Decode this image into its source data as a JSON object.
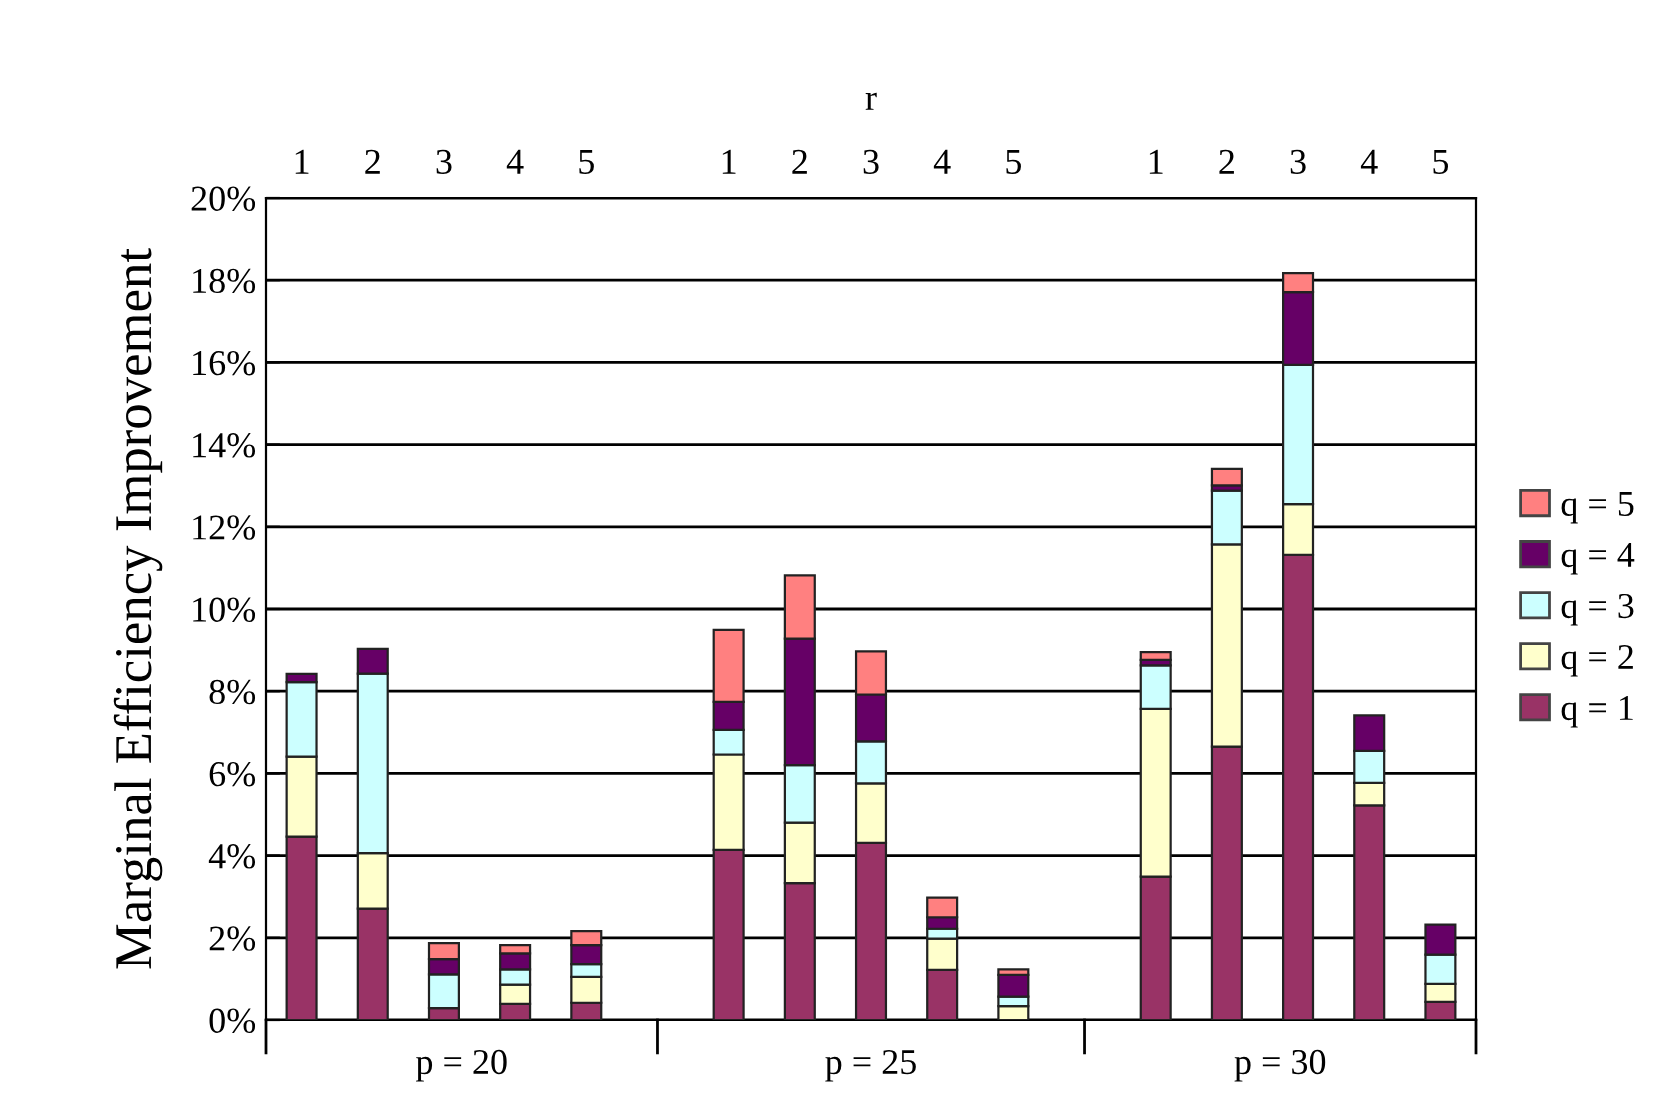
{
  "chart_data": {
    "type": "bar",
    "stacked": true,
    "xlabel": "r",
    "ylabel": "Marginal Efficiency Improvement",
    "categories": [
      "1",
      "2",
      "3",
      "4",
      "5",
      null,
      "1",
      "2",
      "3",
      "4",
      "5",
      null,
      "1",
      "2",
      "3",
      "4",
      "5"
    ],
    "series": [
      {
        "name": "q = 1",
        "color": "#993366",
        "values": [
          4.46,
          2.71,
          0.29,
          0.39,
          0.42,
          null,
          4.14,
          3.33,
          4.31,
          1.22,
          null,
          null,
          3.49,
          6.65,
          11.32,
          5.22,
          0.44
        ]
      },
      {
        "name": "q = 2",
        "color": "#ffffcc",
        "values": [
          1.95,
          1.35,
          null,
          0.47,
          0.63,
          null,
          2.32,
          1.47,
          1.45,
          0.76,
          0.34,
          null,
          4.08,
          4.92,
          1.23,
          0.55,
          0.44
        ]
      },
      {
        "name": "q = 3",
        "color": "#ccffff",
        "values": [
          1.81,
          4.37,
          0.82,
          0.37,
          0.31,
          null,
          0.6,
          1.4,
          1.02,
          0.24,
          0.23,
          null,
          1.06,
          1.31,
          3.39,
          0.78,
          0.71
        ]
      },
      {
        "name": "q = 4",
        "color": "#660066",
        "values": [
          0.2,
          0.6,
          0.37,
          0.39,
          0.46,
          null,
          0.68,
          3.08,
          1.14,
          0.28,
          0.53,
          null,
          0.13,
          0.13,
          1.77,
          0.86,
          0.73
        ]
      },
      {
        "name": "q = 5",
        "color": "#ff8080",
        "values": [
          0,
          0,
          0.39,
          0.2,
          0.34,
          null,
          1.75,
          1.54,
          1.05,
          0.48,
          0.13,
          null,
          0.19,
          0.4,
          0.46,
          0,
          0
        ]
      }
    ],
    "ylim": [
      0,
      20
    ],
    "yticks": [
      {
        "value": 0,
        "label": "0%"
      },
      {
        "value": 2,
        "label": "2%"
      },
      {
        "value": 4,
        "label": "4%"
      },
      {
        "value": 6,
        "label": "6%"
      },
      {
        "value": 8,
        "label": "8%"
      },
      {
        "value": 10,
        "label": "10%"
      },
      {
        "value": 12,
        "label": "12%"
      },
      {
        "value": 14,
        "label": "14%"
      },
      {
        "value": 16,
        "label": "16%"
      },
      {
        "value": 18,
        "label": "18%"
      },
      {
        "value": 20,
        "label": "20%"
      }
    ],
    "grid": "y",
    "legend": "right",
    "annotations": [
      "p = 20",
      "p = 25",
      "p = 30"
    ]
  }
}
